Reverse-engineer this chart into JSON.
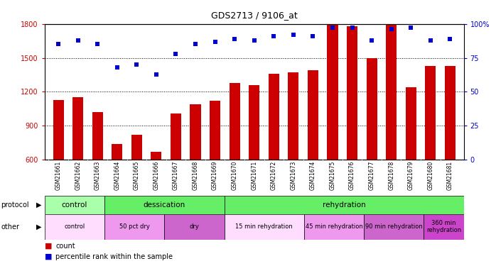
{
  "title": "GDS2713 / 9106_at",
  "categories": [
    "GSM21661",
    "GSM21662",
    "GSM21663",
    "GSM21664",
    "GSM21665",
    "GSM21666",
    "GSM21667",
    "GSM21668",
    "GSM21669",
    "GSM21670",
    "GSM21671",
    "GSM21672",
    "GSM21673",
    "GSM21674",
    "GSM21675",
    "GSM21676",
    "GSM21677",
    "GSM21678",
    "GSM21679",
    "GSM21680",
    "GSM21681"
  ],
  "count_values": [
    1130,
    1150,
    1020,
    740,
    820,
    670,
    1010,
    1090,
    1120,
    1280,
    1260,
    1360,
    1370,
    1390,
    1800,
    1780,
    1500,
    1800,
    1240,
    1430,
    1430
  ],
  "percentile_values": [
    85,
    88,
    85,
    68,
    70,
    63,
    78,
    85,
    87,
    89,
    88,
    91,
    92,
    91,
    97,
    97,
    88,
    96,
    97,
    88,
    89
  ],
  "ylim_left": [
    600,
    1800
  ],
  "ylim_right": [
    0,
    100
  ],
  "yticks_left": [
    600,
    900,
    1200,
    1500,
    1800
  ],
  "yticks_right": [
    0,
    25,
    50,
    75,
    100
  ],
  "bar_color": "#cc0000",
  "dot_color": "#0000cc",
  "bar_width": 0.55,
  "protocol_segments": [
    {
      "text": "control",
      "start": 0,
      "end": 3,
      "color": "#aaffaa"
    },
    {
      "text": "dessication",
      "start": 3,
      "end": 9,
      "color": "#66ee66"
    },
    {
      "text": "rehydration",
      "start": 9,
      "end": 21,
      "color": "#66ee66"
    }
  ],
  "other_segments": [
    {
      "text": "control",
      "start": 0,
      "end": 3,
      "color": "#ffddff"
    },
    {
      "text": "50 pct dry",
      "start": 3,
      "end": 6,
      "color": "#ee99ee"
    },
    {
      "text": "dry",
      "start": 6,
      "end": 9,
      "color": "#cc66cc"
    },
    {
      "text": "15 min rehydration",
      "start": 9,
      "end": 13,
      "color": "#ffddff"
    },
    {
      "text": "45 min rehydration",
      "start": 13,
      "end": 16,
      "color": "#ee99ee"
    },
    {
      "text": "90 min rehydration",
      "start": 16,
      "end": 19,
      "color": "#cc66cc"
    },
    {
      "text": "360 min\nrehydration",
      "start": 19,
      "end": 21,
      "color": "#cc44cc"
    }
  ],
  "background_color": "#ffffff",
  "tick_label_bg": "#cccccc",
  "grid_dotted_color": "#555555"
}
